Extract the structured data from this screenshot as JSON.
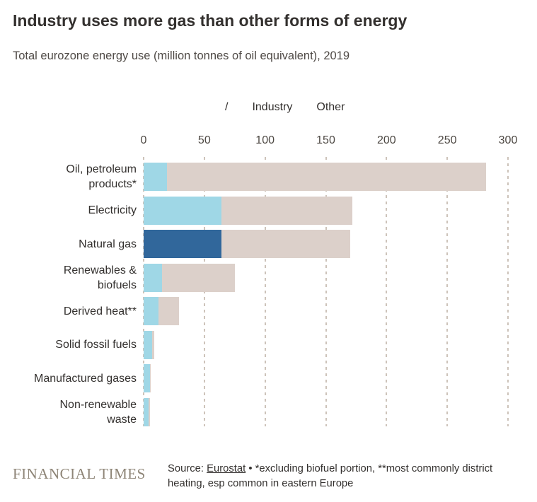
{
  "header": {
    "title": "Industry uses more gas than other forms of energy",
    "subtitle": "Total eurozone energy use (million tonnes of oil equivalent), 2019"
  },
  "legend": {
    "slash": "/",
    "items": [
      {
        "label": "Industry"
      },
      {
        "label": "Other"
      }
    ]
  },
  "chart_data": {
    "type": "bar",
    "orientation": "horizontal",
    "stacked": true,
    "title": "Industry uses more gas than other forms of energy",
    "subtitle": "Total eurozone energy use (million tonnes of oil equivalent), 2019",
    "unit": "million tonnes of oil equivalent",
    "year": "2019",
    "xlim": [
      0,
      300
    ],
    "x_ticks": [
      0,
      50,
      100,
      150,
      200,
      250,
      300
    ],
    "grid": "dashed-vertical",
    "legend_position": "top",
    "categories": [
      "Oil, petroleum products*",
      "Electricity",
      "Natural gas",
      "Renewables & biofuels",
      "Derived heat**",
      "Solid fossil fuels",
      "Manufactured gases",
      "Non-renewable waste"
    ],
    "category_label_lines": [
      [
        "Oil, petroleum",
        "products*"
      ],
      [
        "Electricity"
      ],
      [
        "Natural gas"
      ],
      [
        "Renewables &",
        "biofuels"
      ],
      [
        "Derived heat**"
      ],
      [
        "Solid fossil fuels"
      ],
      [
        "Manufactured gases"
      ],
      [
        "Non-renewable",
        "waste"
      ]
    ],
    "series": [
      {
        "name": "Industry",
        "values": [
          19,
          64,
          64,
          15,
          12,
          7,
          5,
          4
        ],
        "color": "#9fd7e6"
      },
      {
        "name": "Other",
        "values": [
          263,
          108,
          106,
          60,
          17,
          1.5,
          0.5,
          1
        ],
        "color": "#dcd0ca"
      }
    ],
    "highlight": {
      "category": "Natural gas",
      "series": "Industry",
      "color": "#31679b"
    },
    "colors": {
      "industry": "#9fd7e6",
      "industry_highlight": "#31679b",
      "other": "#dcd0ca",
      "gridline": "#cdc3ba",
      "text": "#33302e"
    }
  },
  "footer": {
    "logo": "FINANCIAL TIMES",
    "source_prefix": "Source: ",
    "source_link": "Eurostat",
    "source_suffix": " • *excluding biofuel portion, **most commonly district heating, esp common in eastern Europe"
  }
}
